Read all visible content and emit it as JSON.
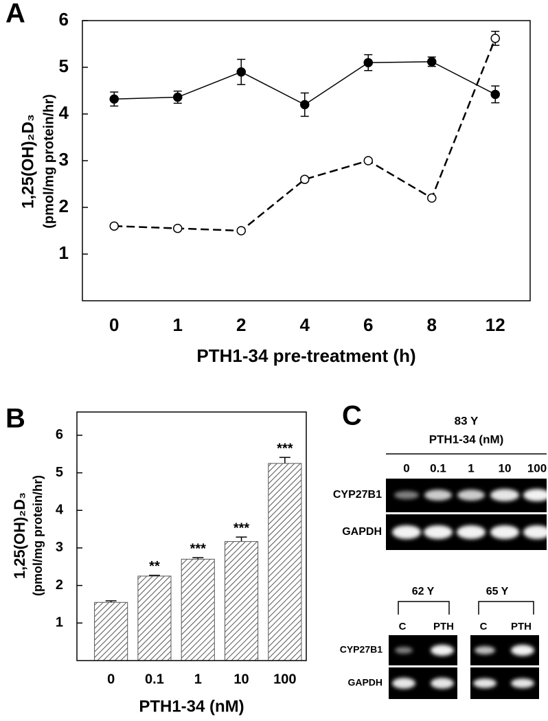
{
  "chart_data": [
    {
      "type": "line",
      "panel": "A",
      "categories": [
        "0",
        "1",
        "2",
        "4",
        "6",
        "8",
        "12"
      ],
      "xlabel": "PTH1-34 pre-treatment (h)",
      "ylabel": "1,25(OH)₂D₃",
      "ylabel_units": "(pmol/mg protein/hr)",
      "ylim": [
        0,
        6
      ],
      "yticks": [
        1,
        2,
        3,
        4,
        5,
        6
      ],
      "series": [
        {
          "color": "#000000",
          "fill": "#000000",
          "dashed": false,
          "values": [
            4.32,
            4.36,
            4.9,
            4.2,
            5.1,
            5.12,
            4.42
          ],
          "errors": [
            0.15,
            0.13,
            0.27,
            0.25,
            0.17,
            0.1,
            0.18
          ]
        },
        {
          "color": "#000000",
          "fill": "#ffffff",
          "dashed": true,
          "values": [
            1.6,
            1.55,
            1.5,
            2.6,
            3.0,
            2.2,
            5.62
          ],
          "errors": [
            0.02,
            0.02,
            0.02,
            0.03,
            0.03,
            0.03,
            0.15
          ]
        }
      ]
    },
    {
      "type": "bar",
      "panel": "B",
      "categories": [
        "0",
        "0.1",
        "1",
        "10",
        "100"
      ],
      "xlabel": "PTH1-34 (nM)",
      "ylabel": "1,25(OH)₂D₃",
      "ylabel_units": "(pmol/mg protein/hr)",
      "ylim": [
        0,
        6.4
      ],
      "yticks": [
        1,
        2,
        3,
        4,
        5,
        6
      ],
      "color": "#555555",
      "hatch": true,
      "values": [
        1.55,
        2.25,
        2.7,
        3.17,
        5.25
      ],
      "errors": [
        0.04,
        0.02,
        0.04,
        0.12,
        0.16
      ],
      "annotations": [
        null,
        "**",
        "***",
        "***",
        "***"
      ]
    }
  ],
  "panel_c": {
    "panel": "C",
    "top": {
      "group": "83 Y",
      "treatment": "PTH1-34 (nM)",
      "lanes": [
        "0",
        "0.1",
        "1",
        "10",
        "100"
      ],
      "rows": [
        "CYP27B1",
        "GAPDH"
      ]
    },
    "bottom": [
      {
        "group": "62 Y",
        "lanes": [
          "C",
          "PTH"
        ],
        "rows": [
          "CYP27B1",
          "GAPDH"
        ]
      },
      {
        "group": "65 Y",
        "lanes": [
          "C",
          "PTH"
        ]
      }
    ]
  }
}
